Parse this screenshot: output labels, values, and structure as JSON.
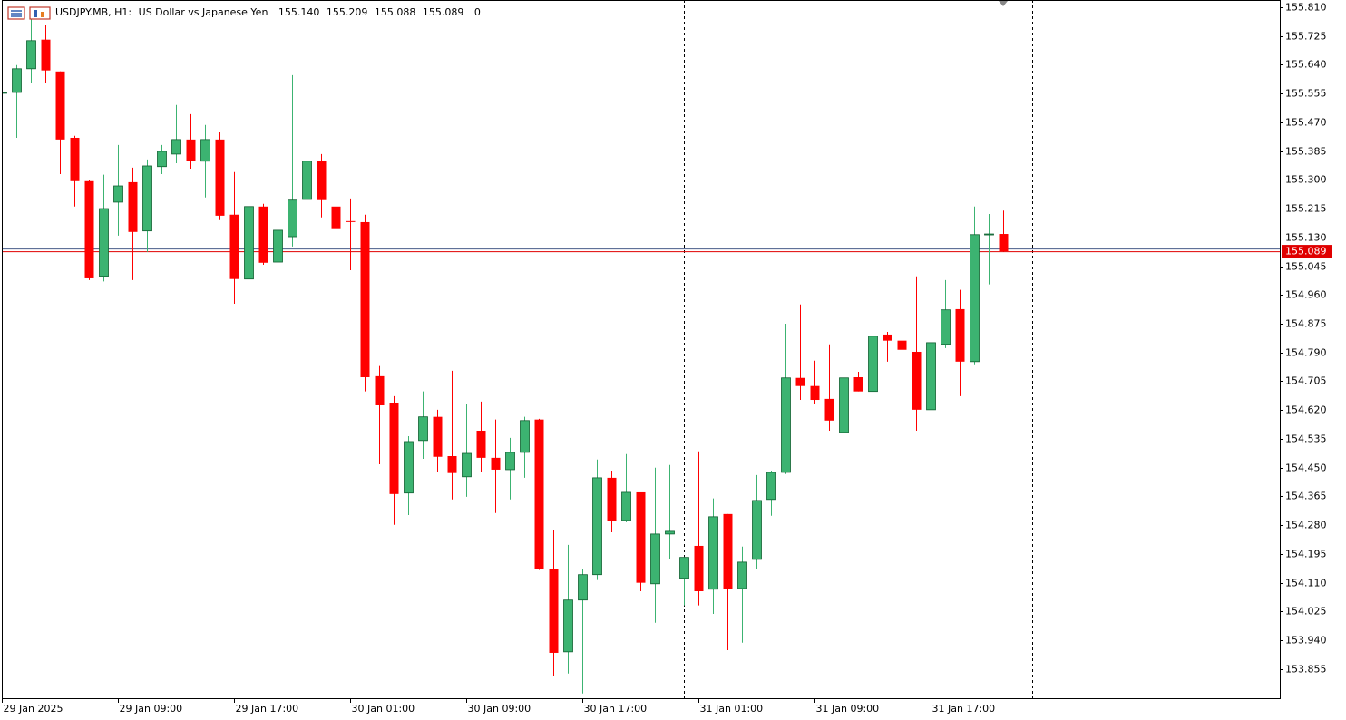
{
  "chart_data": {
    "type": "candlestick",
    "symbol": "USDJPY.MB, H1:",
    "description": "US Dollar vs Japanese Yen",
    "header_values": [
      "155.140",
      "155.209",
      "155.088",
      "155.089",
      "0"
    ],
    "categories": [
      "29 Jan 2025",
      null,
      null,
      null,
      null,
      null,
      null,
      null,
      "29 Jan 09:00",
      null,
      null,
      null,
      null,
      null,
      null,
      null,
      "29 Jan 17:00",
      null,
      null,
      null,
      null,
      null,
      null,
      null,
      "30 Jan 01:00",
      null,
      null,
      null,
      null,
      null,
      null,
      null,
      "30 Jan 09:00",
      null,
      null,
      null,
      null,
      null,
      null,
      null,
      "30 Jan 17:00",
      null,
      null,
      null,
      null,
      null,
      null,
      null,
      "31 Jan 01:00",
      null,
      null,
      null,
      null,
      null,
      null,
      null,
      "31 Jan 09:00",
      null,
      null,
      null,
      null,
      null,
      null,
      null,
      "31 Jan 17:00",
      null,
      null,
      null,
      null,
      null
    ],
    "open": [
      155.556,
      155.558,
      155.628,
      155.714,
      155.62,
      155.424,
      155.296,
      155.015,
      155.234,
      155.293,
      155.149,
      155.339,
      155.376,
      155.419,
      155.355,
      155.419,
      155.197,
      155.007,
      155.221,
      155.057,
      155.132,
      155.242,
      155.357,
      155.221,
      155.178,
      155.175,
      154.72,
      154.642,
      154.375,
      154.53,
      154.6,
      154.484,
      154.423,
      154.559,
      154.479,
      154.444,
      154.495,
      154.592,
      154.15,
      153.906,
      154.059,
      154.134,
      154.42,
      154.294,
      154.377,
      154.107,
      154.254,
      154.123,
      154.219,
      154.091,
      154.313,
      154.093,
      154.179,
      154.356,
      154.436,
      154.715,
      154.691,
      154.653,
      154.554,
      154.717,
      154.675,
      154.843,
      154.825,
      154.792,
      154.621,
      154.814,
      154.918,
      154.763,
      155.138,
      155.14
    ],
    "high": [
      155.56,
      155.639,
      155.783,
      155.756,
      155.62,
      155.43,
      155.298,
      155.315,
      155.403,
      155.336,
      155.36,
      155.403,
      155.521,
      155.494,
      155.462,
      155.44,
      155.323,
      155.24,
      155.229,
      155.157,
      155.609,
      155.387,
      155.376,
      155.232,
      155.245,
      155.197,
      154.75,
      154.661,
      154.543,
      154.675,
      154.621,
      154.736,
      154.637,
      154.645,
      154.592,
      154.538,
      154.6,
      154.594,
      154.265,
      154.222,
      154.15,
      154.474,
      154.441,
      154.49,
      154.377,
      154.45,
      154.458,
      154.187,
      154.498,
      154.359,
      154.313,
      154.217,
      154.428,
      154.441,
      154.875,
      154.932,
      154.766,
      154.814,
      154.717,
      154.733,
      154.851,
      154.851,
      154.825,
      155.015,
      154.975,
      155.004,
      154.975,
      155.221,
      155.199,
      155.209
    ],
    "low": [
      155.553,
      155.424,
      155.585,
      155.585,
      155.317,
      155.221,
      155.004,
      155.0,
      155.135,
      155.004,
      155.087,
      155.317,
      155.349,
      155.333,
      155.248,
      155.181,
      154.934,
      154.969,
      155.049,
      155.0,
      155.103,
      155.098,
      155.189,
      155.127,
      155.033,
      154.675,
      154.46,
      154.281,
      154.31,
      154.476,
      154.436,
      154.356,
      154.364,
      154.436,
      154.316,
      154.356,
      154.42,
      154.148,
      153.834,
      153.842,
      153.783,
      154.118,
      154.259,
      154.289,
      154.085,
      153.992,
      154.179,
      154.043,
      154.043,
      154.018,
      153.911,
      153.933,
      154.15,
      154.308,
      154.431,
      154.65,
      154.637,
      154.559,
      154.484,
      154.675,
      154.605,
      154.763,
      154.736,
      154.559,
      154.525,
      154.803,
      154.661,
      154.755,
      154.991,
      155.088
    ],
    "close": [
      155.558,
      155.628,
      155.711,
      155.623,
      155.419,
      155.296,
      155.009,
      155.215,
      155.282,
      155.146,
      155.341,
      155.384,
      155.419,
      155.357,
      155.419,
      155.194,
      155.007,
      155.221,
      155.055,
      155.151,
      155.24,
      155.355,
      155.24,
      155.157,
      155.176,
      154.717,
      154.634,
      154.372,
      154.527,
      154.6,
      154.482,
      154.434,
      154.492,
      154.479,
      154.444,
      154.495,
      154.589,
      154.15,
      153.903,
      154.059,
      154.134,
      154.42,
      154.292,
      154.377,
      154.11,
      154.254,
      154.262,
      154.185,
      154.085,
      154.305,
      154.091,
      154.171,
      154.353,
      154.436,
      154.715,
      154.691,
      154.65,
      154.589,
      154.715,
      154.675,
      154.838,
      154.825,
      154.798,
      154.621,
      154.819,
      154.916,
      154.763,
      155.138,
      155.14,
      155.089
    ],
    "up_color": "#3cb371",
    "up_border": "#0f5f30",
    "down_color": "#ff0000",
    "price_line": 155.089,
    "price_line_color": "#e00000",
    "ylim": [
      153.769,
      155.831
    ],
    "yticks": [
      {
        "value": 155.81,
        "label": "155.810"
      },
      155.725,
      {
        "value": 155.64,
        "label": "155.640"
      },
      155.555,
      {
        "value": 155.47,
        "label": "155.470"
      },
      155.385,
      {
        "value": 155.3,
        "label": "155.300"
      },
      155.215,
      {
        "value": 155.13,
        "label": "155.130"
      },
      155.045,
      {
        "value": 154.96,
        "label": "154.960"
      },
      154.875,
      {
        "value": 154.79,
        "label": "154.790"
      },
      154.705,
      {
        "value": 154.62,
        "label": "154.620"
      },
      154.535,
      {
        "value": 154.45,
        "label": "154.450"
      },
      154.365,
      {
        "value": 154.28,
        "label": "154.280"
      },
      154.195,
      {
        "value": 154.11,
        "label": "154.110"
      },
      154.025,
      {
        "value": 153.94,
        "label": "153.940"
      },
      153.855
    ],
    "grid": false,
    "period_separators": true
  }
}
